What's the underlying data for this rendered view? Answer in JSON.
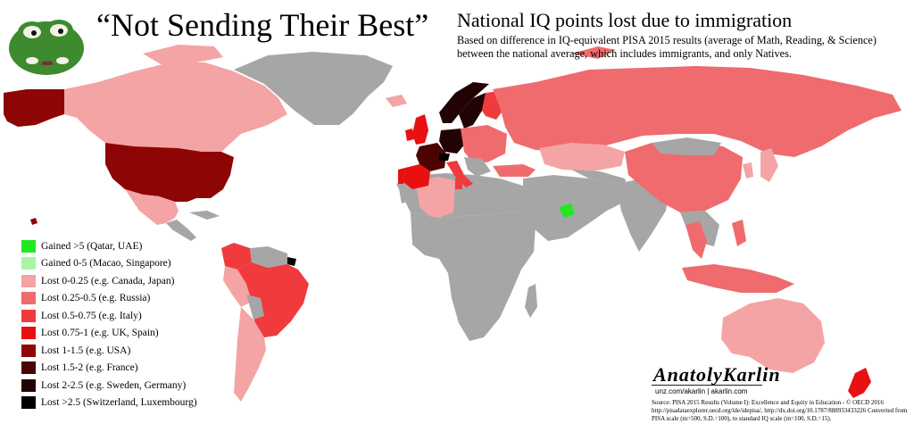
{
  "header": {
    "quote_title": "“Not Sending Their Best”",
    "title": "National IQ points lost due to immigration",
    "subtitle": "Based on difference in IQ-equivalent PISA 2015 results (average of Math, Reading, & Science) between the national average, which includes immigrants, and only Natives."
  },
  "colors": {
    "ocean": "#ffffff",
    "no_data": "#a6a6a6",
    "border": "#ffffff"
  },
  "legend": {
    "items": [
      {
        "label": "Gained >5 (Qatar, UAE)",
        "color": "#21e821"
      },
      {
        "label": "Gained 0-5 (Macao, Singapore)",
        "color": "#a8f5a8"
      },
      {
        "label": "Lost 0-0.25 (e.g. Canada, Japan)",
        "color": "#f4a4a4"
      },
      {
        "label": "Lost 0.25-0.5 (e.g. Russia)",
        "color": "#ef6b6e"
      },
      {
        "label": "Lost 0.5-0.75 (e.g. Italy)",
        "color": "#f03a3e"
      },
      {
        "label": "Lost 0.75-1 (e.g. UK, Spain)",
        "color": "#e81010"
      },
      {
        "label": "Lost 1-1.5 (e.g. USA)",
        "color": "#8e0505"
      },
      {
        "label": "Lost 1.5-2 (e.g. France)",
        "color": "#4c0303"
      },
      {
        "label": "Lost 2-2.5 (e.g. Sweden, Germany)",
        "color": "#220303"
      },
      {
        "label": "Lost >2.5 (Switzerland, Luxembourg)",
        "color": "#000000"
      }
    ]
  },
  "map_data": {
    "regions": [
      {
        "name": "Canada",
        "category": 2
      },
      {
        "name": "USA",
        "category": 6
      },
      {
        "name": "Mexico",
        "category": 3
      },
      {
        "name": "Brazil",
        "category": 4
      },
      {
        "name": "Peru",
        "category": 2
      },
      {
        "name": "Colombia",
        "category": 3
      },
      {
        "name": "Argentina",
        "category": 2
      },
      {
        "name": "Russia",
        "category": 3
      },
      {
        "name": "China",
        "category": 3
      },
      {
        "name": "Australia",
        "category": 2
      },
      {
        "name": "Algeria",
        "category": 2
      },
      {
        "name": "Spain",
        "category": 5
      },
      {
        "name": "France",
        "category": 7
      },
      {
        "name": "Germany",
        "category": 8
      },
      {
        "name": "Sweden",
        "category": 8
      },
      {
        "name": "UK",
        "category": 5
      },
      {
        "name": "Italy",
        "category": 4
      },
      {
        "name": "Switzerland",
        "category": 9
      },
      {
        "name": "UAE",
        "category": 0
      },
      {
        "name": "Singapore",
        "category": 1
      },
      {
        "name": "New Zealand",
        "category": 5
      },
      {
        "name": "Indonesia",
        "category": 3
      },
      {
        "name": "Thailand",
        "category": 3
      },
      {
        "name": "Japan",
        "category": 2
      },
      {
        "name": "Kazakhstan",
        "category": 2
      },
      {
        "name": "Greenland",
        "category": -1
      },
      {
        "name": "Africa",
        "category": -1
      },
      {
        "name": "Middle East",
        "category": -1
      },
      {
        "name": "India",
        "category": -1
      }
    ]
  },
  "credit": {
    "signature": "AnatolyKarlin",
    "sites": "unz.com/akarlin | akarlin.com",
    "source": "Source: PISA 2015 Results (Volume I): Excellence and Equity in Education - © OECD 2016 http://pisadataexplorer.oecd.org/ide/idepisa/, http://dx.doi.org/10.1787/888933433226 Converted from PISA scale (m=500, S.D.=100), to standard IQ scale (m=100, S.D.=15)."
  }
}
